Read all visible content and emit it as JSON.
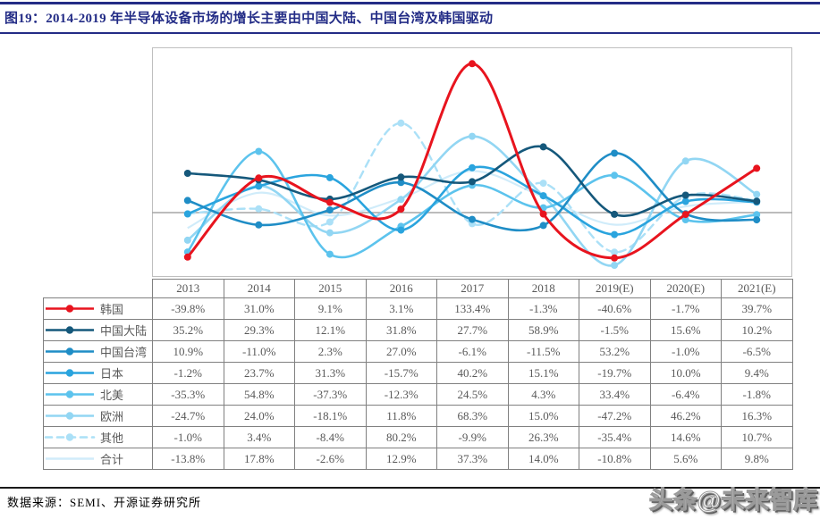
{
  "header": {
    "title": "图19：2014-2019 年半导体设备市场的增长主要由中国大陆、中国台湾及韩国驱动",
    "accent_color": "#232C86"
  },
  "footer": {
    "source": "数据来源：SEMI、开源证券研究所",
    "watermark": "头条@未来智库"
  },
  "table": {
    "corner": "",
    "columns": [
      "2013",
      "2014",
      "2015",
      "2016",
      "2017",
      "2018",
      "2019(E)",
      "2020(E)",
      "2021(E)"
    ],
    "rows": [
      {
        "label": "韩国",
        "values": [
          "-39.8%",
          "31.0%",
          "9.1%",
          "3.1%",
          "133.4%",
          "-1.3%",
          "-40.6%",
          "-1.7%",
          "39.7%"
        ]
      },
      {
        "label": "中国大陆",
        "values": [
          "35.2%",
          "29.3%",
          "12.1%",
          "31.8%",
          "27.7%",
          "58.9%",
          "-1.5%",
          "15.6%",
          "10.2%"
        ]
      },
      {
        "label": "中国台湾",
        "values": [
          "10.9%",
          "-11.0%",
          "2.3%",
          "27.0%",
          "-6.1%",
          "-11.5%",
          "53.2%",
          "-1.0%",
          "-6.5%"
        ]
      },
      {
        "label": "日本",
        "values": [
          "-1.2%",
          "23.7%",
          "31.3%",
          "-15.7%",
          "40.2%",
          "15.1%",
          "-19.7%",
          "10.0%",
          "9.4%"
        ]
      },
      {
        "label": "北美",
        "values": [
          "-35.3%",
          "54.8%",
          "-37.3%",
          "-12.3%",
          "24.5%",
          "4.3%",
          "33.4%",
          "-6.4%",
          "-1.8%"
        ]
      },
      {
        "label": "欧洲",
        "values": [
          "-24.7%",
          "24.0%",
          "-18.1%",
          "11.8%",
          "68.3%",
          "15.0%",
          "-47.2%",
          "46.2%",
          "16.3%"
        ]
      },
      {
        "label": "其他",
        "values": [
          "-1.0%",
          "3.4%",
          "-8.4%",
          "80.2%",
          "-9.9%",
          "26.3%",
          "-35.4%",
          "14.6%",
          "10.7%"
        ]
      },
      {
        "label": "合计",
        "values": [
          "-13.8%",
          "17.8%",
          "-2.6%",
          "12.9%",
          "37.3%",
          "14.0%",
          "-10.8%",
          "5.6%",
          "9.8%"
        ]
      }
    ]
  },
  "chart_data": {
    "type": "line",
    "smooth": true,
    "title": "",
    "xlabel": "",
    "ylabel": "",
    "categories": [
      "2013",
      "2014",
      "2015",
      "2016",
      "2017",
      "2018",
      "2019(E)",
      "2020(E)",
      "2021(E)"
    ],
    "unit": "percent",
    "ylim": [
      -57,
      148
    ],
    "grid": "zero-line-only",
    "zero_line_color": "#A6A6A6",
    "plot_border_color": "#BFBFBF",
    "legend_position": "table-left-column",
    "series": [
      {
        "name": "韩国",
        "color": "#E8141E",
        "dash": false,
        "markers": true,
        "width": 3,
        "values": [
          -39.8,
          31.0,
          9.1,
          3.1,
          133.4,
          -1.3,
          -40.6,
          -1.7,
          39.7
        ]
      },
      {
        "name": "中国大陆",
        "color": "#15587B",
        "dash": false,
        "markers": true,
        "width": 2.6,
        "values": [
          35.2,
          29.3,
          12.1,
          31.8,
          27.7,
          58.9,
          -1.5,
          15.6,
          10.2
        ]
      },
      {
        "name": "中国台湾",
        "color": "#1F8DC6",
        "dash": false,
        "markers": true,
        "width": 2.6,
        "values": [
          10.9,
          -11.0,
          2.3,
          27.0,
          -6.1,
          -11.5,
          53.2,
          -1.0,
          -6.5
        ]
      },
      {
        "name": "日本",
        "color": "#2AA4DE",
        "dash": false,
        "markers": true,
        "width": 2.6,
        "values": [
          -1.2,
          23.7,
          31.3,
          -15.7,
          40.2,
          15.1,
          -19.7,
          10.0,
          9.4
        ]
      },
      {
        "name": "北美",
        "color": "#5CC3ED",
        "dash": false,
        "markers": true,
        "width": 2.6,
        "values": [
          -35.3,
          54.8,
          -37.3,
          -12.3,
          24.5,
          4.3,
          33.4,
          -6.4,
          -1.8
        ]
      },
      {
        "name": "欧洲",
        "color": "#92D6F3",
        "dash": false,
        "markers": true,
        "width": 2.6,
        "values": [
          -24.7,
          24.0,
          -18.1,
          11.8,
          68.3,
          15.0,
          -47.2,
          46.2,
          16.3
        ]
      },
      {
        "name": "其他",
        "color": "#ABE0F7",
        "dash": true,
        "markers": true,
        "width": 2.4,
        "values": [
          -1.0,
          3.4,
          -8.4,
          80.2,
          -9.9,
          26.3,
          -35.4,
          14.6,
          10.7
        ]
      },
      {
        "name": "合计",
        "color": "#D0ECFA",
        "dash": false,
        "markers": false,
        "width": 2.2,
        "values": [
          -13.8,
          17.8,
          -2.6,
          12.9,
          37.3,
          14.0,
          -10.8,
          5.6,
          9.8
        ]
      }
    ]
  }
}
